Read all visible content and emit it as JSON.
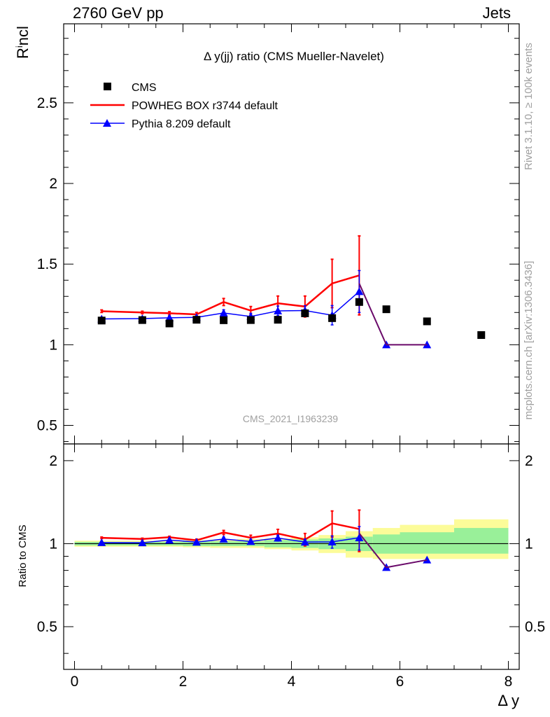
{
  "header": {
    "beam": "2760 GeV pp",
    "category": "Jets",
    "side_rivet": "Rivet 3.1.10, ≥ 100k events",
    "side_url": "mcplots.cern.ch [arXiv:1306.3436]"
  },
  "chart_data": {
    "type": "line",
    "title": "Δ y(jj) ratio (CMS Mueller-Navelet)",
    "watermark": "CMS_2021_I1963239",
    "xlabel": "Δ y",
    "ylabel": "R^incl",
    "ratio_ylabel": "Ratio to CMS",
    "xlim": [
      -0.2,
      8.2
    ],
    "ylim": [
      0.385,
      2.99
    ],
    "ratio_ylim": [
      0.35,
      2.3
    ],
    "xticks": [
      0,
      2,
      4,
      6,
      8
    ],
    "yticks": [
      0.5,
      1,
      1.5,
      2,
      2.5
    ],
    "ratio_yticks": [
      0.5,
      1,
      2
    ],
    "legend_position": "top-left",
    "series": [
      {
        "name": "CMS",
        "color": "#000000",
        "marker": "square",
        "x": [
          0.5,
          1.25,
          1.75,
          2.25,
          2.75,
          3.25,
          3.75,
          4.25,
          4.75,
          5.25,
          5.75,
          6.5,
          7.5
        ],
        "y": [
          1.15,
          1.153,
          1.132,
          1.155,
          1.152,
          1.153,
          1.155,
          1.195,
          1.165,
          1.265,
          1.22,
          1.145,
          1.06
        ]
      },
      {
        "name": "POWHEG BOX r3744 default",
        "color": "#ff0000",
        "marker": "none",
        "x": [
          0.5,
          1.25,
          1.75,
          2.25,
          2.75,
          3.25,
          3.75,
          4.25,
          4.75,
          5.25,
          5.75,
          6.5
        ],
        "y": [
          1.208,
          1.2,
          1.195,
          1.188,
          1.265,
          1.212,
          1.257,
          1.237,
          1.38,
          1.43,
          1.0,
          1.0
        ],
        "err": [
          0.008,
          0.008,
          0.01,
          0.012,
          0.022,
          0.025,
          0.045,
          0.065,
          0.15,
          0.245,
          0,
          0
        ],
        "ratio": [
          1.05,
          1.04,
          1.055,
          1.029,
          1.098,
          1.051,
          1.088,
          1.035,
          1.185,
          1.13,
          0.82,
          0.873
        ],
        "ratio_err": [
          0.007,
          0.007,
          0.009,
          0.01,
          0.019,
          0.022,
          0.039,
          0.054,
          0.129,
          0.194,
          0,
          0
        ]
      },
      {
        "name": "Pythia 8.209 default",
        "color": "#0000ff",
        "marker": "triangle",
        "x": [
          0.5,
          1.25,
          1.75,
          2.25,
          2.75,
          3.25,
          3.75,
          4.25,
          4.75,
          5.25,
          5.75,
          6.5
        ],
        "y": [
          1.16,
          1.162,
          1.167,
          1.17,
          1.197,
          1.175,
          1.21,
          1.212,
          1.183,
          1.33,
          1.0,
          1.0
        ],
        "err": [
          0.008,
          0.008,
          0.01,
          0.01,
          0.02,
          0.02,
          0.03,
          0.03,
          0.06,
          0.13,
          0,
          0
        ],
        "ratio": [
          1.009,
          1.008,
          1.031,
          1.013,
          1.039,
          1.019,
          1.048,
          1.014,
          1.015,
          1.051,
          0.82,
          0.873
        ],
        "ratio_err": [
          0.007,
          0.007,
          0.009,
          0.009,
          0.017,
          0.017,
          0.026,
          0.025,
          0.052,
          0.103,
          0,
          0
        ]
      }
    ],
    "mc_connector_color": "#6a0a6a",
    "uncertainty_bands": {
      "edges": [
        0,
        1,
        2,
        2.5,
        3,
        3.5,
        4,
        4.5,
        5,
        5.5,
        6,
        7,
        8
      ],
      "stat_lo": [
        0.985,
        0.985,
        0.98,
        0.98,
        0.98,
        0.97,
        0.965,
        0.955,
        0.94,
        0.92,
        0.92,
        0.92
      ],
      "stat_hi": [
        1.015,
        1.015,
        1.02,
        1.02,
        1.02,
        1.03,
        1.035,
        1.045,
        1.06,
        1.08,
        1.1,
        1.14
      ],
      "total_lo": [
        0.975,
        0.975,
        0.97,
        0.965,
        0.965,
        0.955,
        0.945,
        0.925,
        0.89,
        0.88,
        0.88,
        0.88
      ],
      "total_hi": [
        1.025,
        1.025,
        1.03,
        1.035,
        1.04,
        1.045,
        1.055,
        1.075,
        1.11,
        1.14,
        1.17,
        1.225
      ],
      "stat_color": "#99f099",
      "total_color": "#fcfc99"
    }
  }
}
